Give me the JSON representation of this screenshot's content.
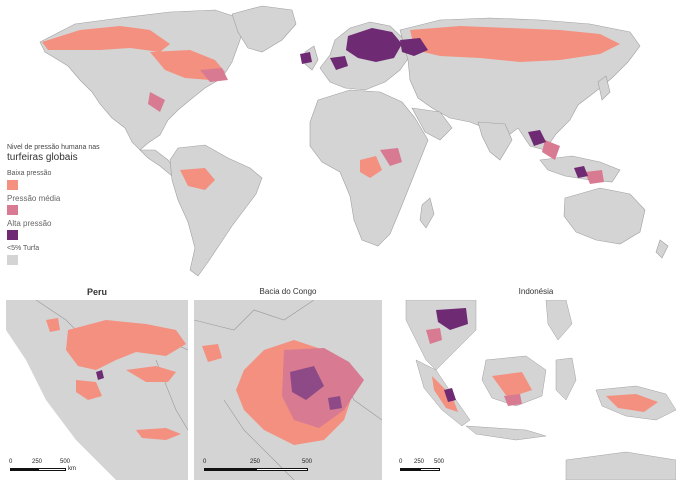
{
  "legend": {
    "title_line1": "Nivel de pressão humana nas",
    "title_line2": "turfeiras globais",
    "items": [
      {
        "label": "Baixa pressão",
        "color": "#f4907f"
      },
      {
        "label": "Pressão média",
        "color": "#d77a92"
      },
      {
        "label": "Alta pressão",
        "color": "#6e2a73"
      },
      {
        "label": "<5% Turfa",
        "color": "#d4d4d4"
      }
    ]
  },
  "insets": [
    {
      "title": "Peru",
      "scale": {
        "ticks": [
          "0",
          "250",
          "500"
        ],
        "unit": "km"
      }
    },
    {
      "title": "Bacia do Congo",
      "scale": {
        "ticks": [
          "0",
          "250",
          "500"
        ]
      }
    },
    {
      "title": "Indonésia",
      "scale": {
        "ticks": [
          "0",
          "250",
          "500"
        ]
      }
    }
  ],
  "colors": {
    "land": "#d4d4d4",
    "ocean": "#ffffff",
    "borders": "#9a9a9a"
  }
}
